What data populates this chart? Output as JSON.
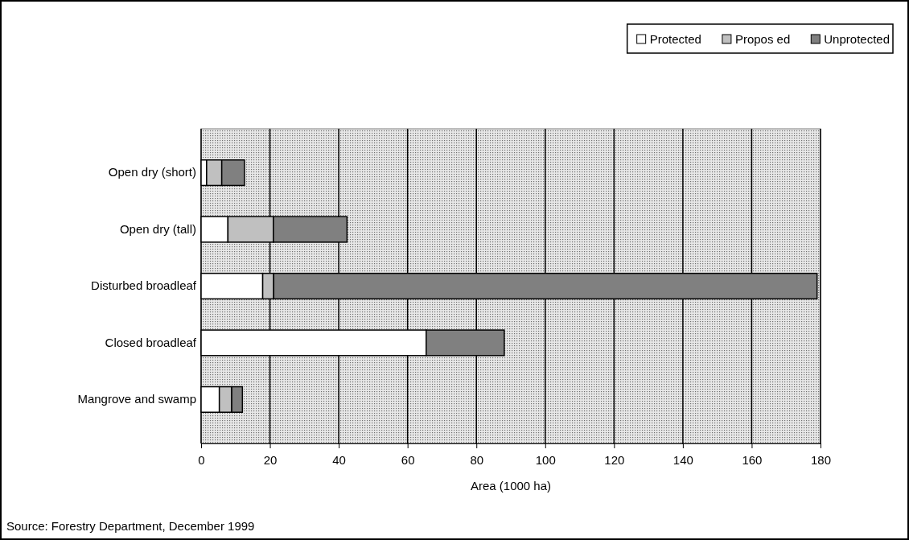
{
  "chart_data": {
    "type": "bar",
    "orientation": "horizontal",
    "stacked": true,
    "categories": [
      "Open dry (short)",
      "Open dry (tall)",
      "Disturbed broadleaf",
      "Closed broadleaf",
      "Mangrove and swamp"
    ],
    "series": [
      {
        "name": "Protected",
        "color": "#ffffff",
        "values": [
          1.6,
          7.8,
          17.9,
          65.4,
          5.3
        ]
      },
      {
        "name": "Propos ed",
        "color": "#c0c0c0",
        "values": [
          4.4,
          13.2,
          3.2,
          0,
          3.6
        ]
      },
      {
        "name": "Unprotected",
        "color": "#808080",
        "values": [
          6.6,
          21.4,
          157.9,
          22.7,
          3.1
        ]
      }
    ],
    "xlim": [
      0,
      180
    ],
    "xticks": [
      0,
      20,
      40,
      60,
      80,
      100,
      120,
      140,
      160,
      180
    ],
    "xlabel": "Area (1000 ha)",
    "grid": "x",
    "legend": "top right",
    "annotations": [
      "Source: Forestry Department, December 1999"
    ]
  }
}
